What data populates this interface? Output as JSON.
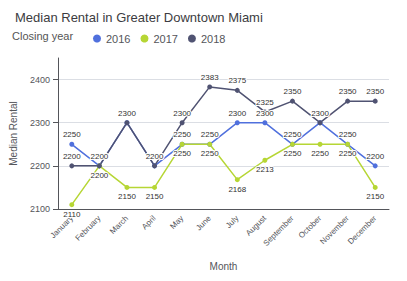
{
  "chart_data": {
    "type": "line",
    "title": "Median Rental in Greater Downtown Miami",
    "xlabel": "Month",
    "ylabel": "Median Rental",
    "annotations": [
      "Closing year"
    ],
    "categories": [
      "January",
      "February",
      "March",
      "April",
      "May",
      "June",
      "July",
      "August",
      "September",
      "October",
      "November",
      "December"
    ],
    "series": [
      {
        "name": "2016",
        "values": [
          2250,
          2200,
          2300,
          2200,
          2250,
          2250,
          2300,
          2300,
          2250,
          2300,
          2250,
          2200
        ]
      },
      {
        "name": "2017",
        "values": [
          2110,
          2200,
          2150,
          2150,
          2250,
          2250,
          2168,
          2213,
          2250,
          2250,
          2250,
          2150
        ]
      },
      {
        "name": "2018",
        "values": [
          2200,
          2200,
          2300,
          2200,
          2300,
          2383,
          2375,
          2325,
          2350,
          2300,
          2350,
          2350
        ]
      }
    ],
    "ylim": [
      2100,
      2450
    ],
    "yticks": [
      2100,
      2200,
      2300,
      2400
    ],
    "grid": true,
    "legend": "upper left",
    "data_labels": true,
    "marker": "circle"
  }
}
